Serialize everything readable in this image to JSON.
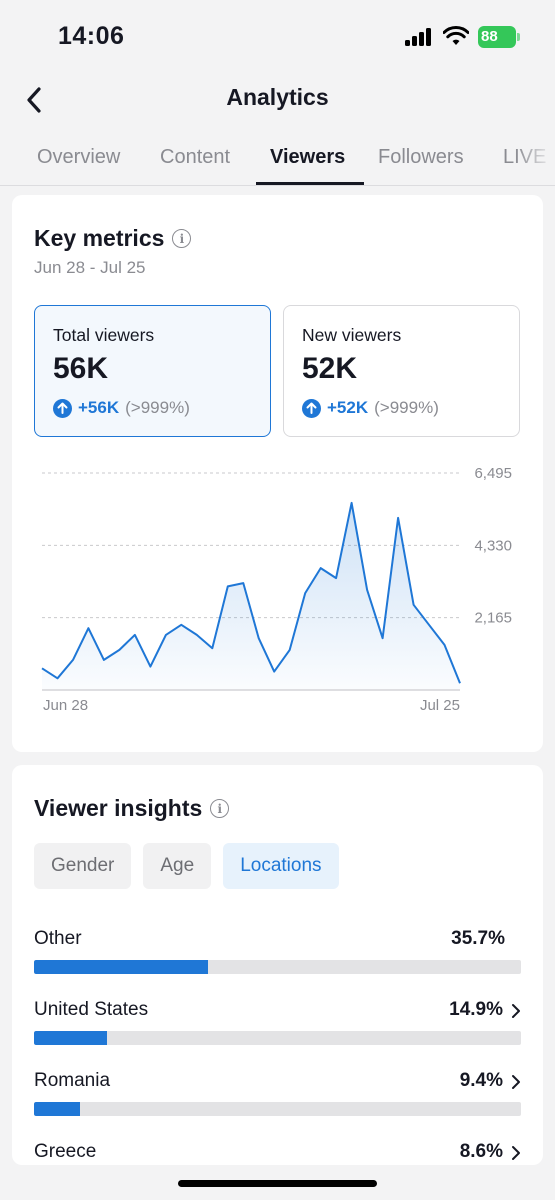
{
  "status_bar": {
    "time": "14:06",
    "battery": "88"
  },
  "header": {
    "title": "Analytics"
  },
  "tabs": [
    {
      "label": "Overview",
      "active": false
    },
    {
      "label": "Content",
      "active": false
    },
    {
      "label": "Viewers",
      "active": true
    },
    {
      "label": "Followers",
      "active": false
    },
    {
      "label": "LIVE",
      "active": false
    }
  ],
  "key_metrics": {
    "title": "Key metrics",
    "date_range": "Jun 28 - Jul 25",
    "metrics": [
      {
        "label": "Total viewers",
        "value": "56K",
        "change": "+56K",
        "change_pct": "(>999%)",
        "selected": true
      },
      {
        "label": "New viewers",
        "value": "52K",
        "change": "+52K",
        "change_pct": "(>999%)",
        "selected": false
      }
    ]
  },
  "chart_data": {
    "type": "area",
    "x_start_label": "Jun 28",
    "x_end_label": "Jul 25",
    "y_ticks": [
      "6,495",
      "4,330",
      "2,165"
    ],
    "ylim": [
      0,
      6495
    ],
    "values": [
      650,
      350,
      900,
      1850,
      900,
      1200,
      1650,
      700,
      1650,
      1950,
      1650,
      1250,
      3100,
      3200,
      1550,
      550,
      1200,
      2900,
      3650,
      3350,
      5600,
      3000,
      1550,
      5150,
      2550,
      1950,
      1350,
      200
    ],
    "color": "#1f77d6",
    "grid": true
  },
  "insights": {
    "title": "Viewer insights",
    "segments": [
      {
        "label": "Gender",
        "active": false
      },
      {
        "label": "Age",
        "active": false
      },
      {
        "label": "Locations",
        "active": true
      }
    ],
    "locations": [
      {
        "name": "Other",
        "percent": "35.7%",
        "fraction": 0.357,
        "arrow": false
      },
      {
        "name": "United States",
        "percent": "14.9%",
        "fraction": 0.149,
        "arrow": true
      },
      {
        "name": "Romania",
        "percent": "9.4%",
        "fraction": 0.094,
        "arrow": true
      },
      {
        "name": "Greece",
        "percent": "8.6%",
        "fraction": 0.086,
        "arrow": true
      }
    ]
  },
  "colors": {
    "accent": "#1f77d6",
    "battery": "#34c759"
  }
}
